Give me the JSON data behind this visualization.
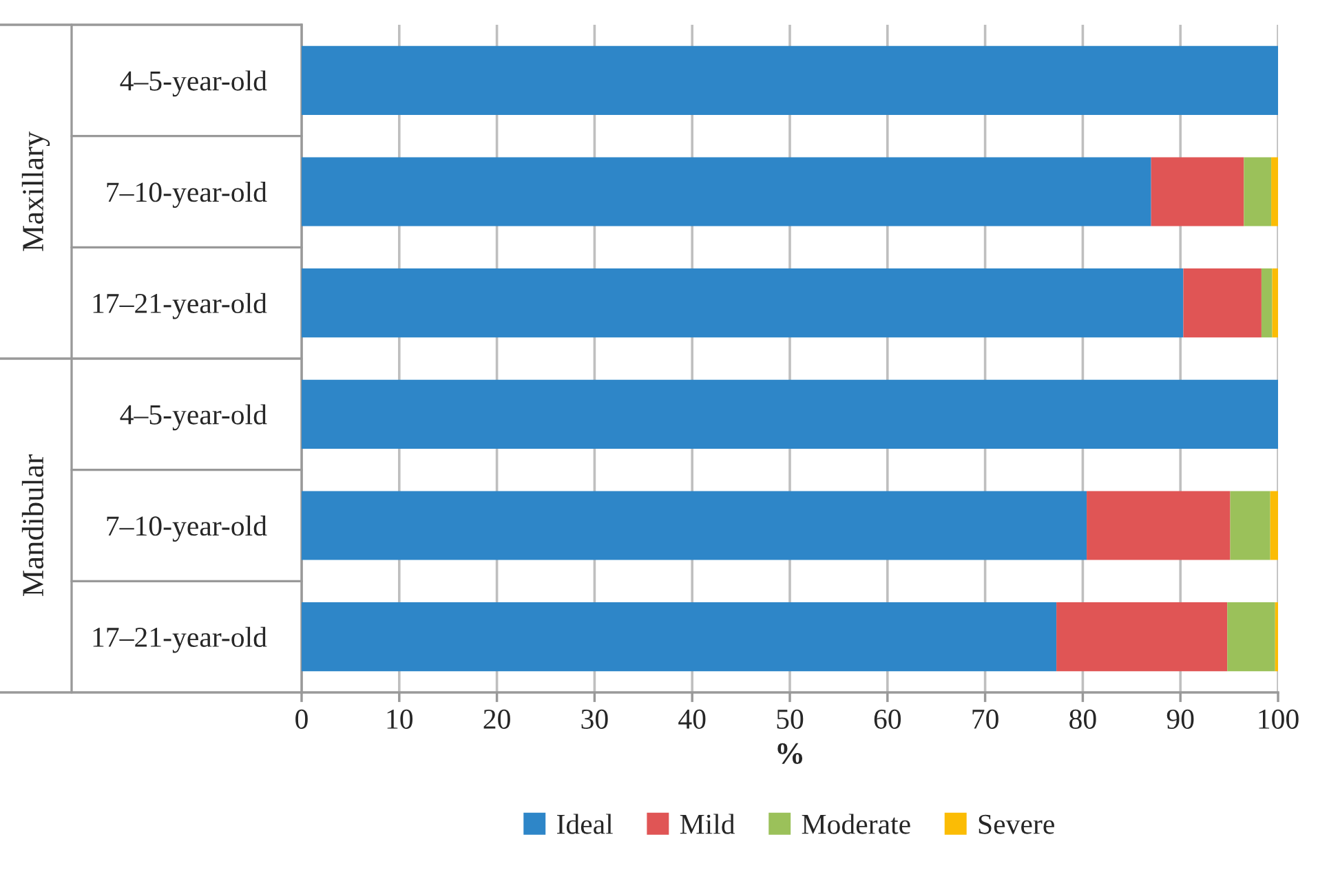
{
  "chart_data": {
    "type": "bar",
    "orientation": "horizontal",
    "stacked": true,
    "categories": [
      "4–5-year-old",
      "7–10-year-old",
      "17–21-year-old",
      "4–5-year-old",
      "7–10-year-old",
      "17–21-year-old"
    ],
    "series": [
      {
        "name": "Ideal",
        "color": "#2e86c8",
        "values": [
          100,
          87.0,
          90.3,
          100,
          80.4,
          77.3
        ]
      },
      {
        "name": "Mild",
        "color": "#e05555",
        "values": [
          0,
          9.5,
          8.0,
          0,
          14.7,
          17.5
        ]
      },
      {
        "name": "Moderate",
        "color": "#9bc15a",
        "values": [
          0,
          2.8,
          1.1,
          0,
          4.1,
          4.9
        ]
      },
      {
        "name": "Severe",
        "color": "#fbbc05",
        "values": [
          0,
          0.7,
          0.6,
          0,
          0.8,
          0.3
        ]
      }
    ],
    "xlim": [
      0,
      100
    ],
    "xticks": [
      0,
      10,
      20,
      30,
      40,
      50,
      60,
      70,
      80,
      90,
      100
    ],
    "xlabel": "%",
    "annotations": [
      "Maxillary",
      "Mandibular"
    ],
    "grid": "x",
    "legend": "bottom"
  }
}
